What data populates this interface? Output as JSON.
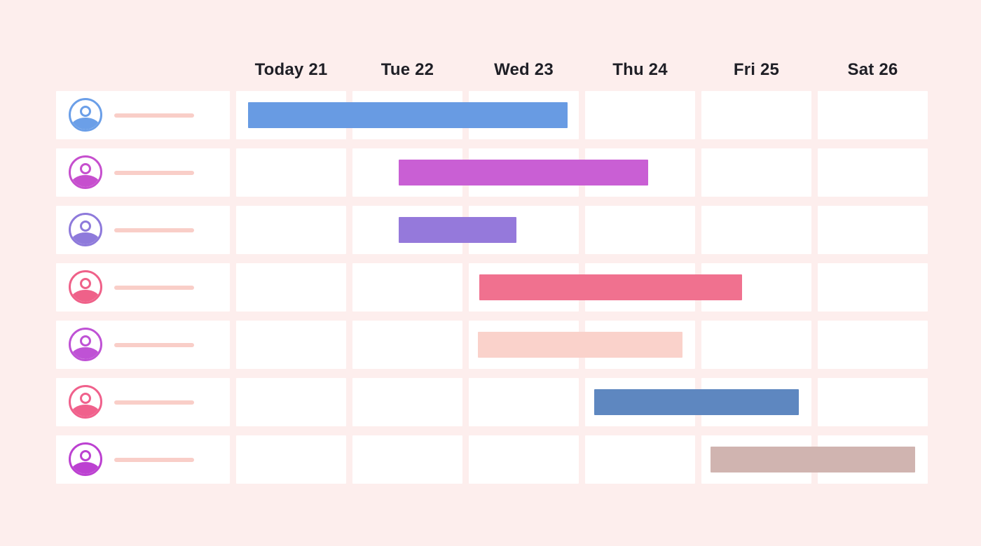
{
  "page": {
    "background": "#FDEEED",
    "cell_color": "#FFFFFF",
    "header_text_color": "#1F1F26",
    "placeholder_color": "#F9CEC8"
  },
  "header": {
    "days": [
      "Today 21",
      "Tue 22",
      "Wed 23",
      "Thu 24",
      "Fri 25",
      "Sat 26"
    ]
  },
  "chart_data": {
    "type": "gantt",
    "columns": [
      "Today 21",
      "Tue 22",
      "Wed 23",
      "Thu 24",
      "Fri 25",
      "Sat 26"
    ],
    "day_unit_note": "start_day/end_day are fractional offsets where 0 = left edge of the Today 21 column and 1 = one full day column",
    "rows": [
      {
        "avatar_color": "#6B9FE8",
        "bar": {
          "start_day": 0.1,
          "end_day": 2.85,
          "color": "#689BE3"
        }
      },
      {
        "avatar_color": "#C64FCE",
        "bar": {
          "start_day": 1.4,
          "end_day": 3.54,
          "color": "#C95FD4"
        }
      },
      {
        "avatar_color": "#8E7ADB",
        "bar": {
          "start_day": 1.4,
          "end_day": 2.41,
          "color": "#9579DB"
        }
      },
      {
        "avatar_color": "#EF6189",
        "bar": {
          "start_day": 2.09,
          "end_day": 4.35,
          "color": "#F0718F"
        }
      },
      {
        "avatar_color": "#BF52D5",
        "bar": {
          "start_day": 2.08,
          "end_day": 3.84,
          "color": "#FAD2CB"
        }
      },
      {
        "avatar_color": "#F0618C",
        "bar": {
          "start_day": 3.08,
          "end_day": 4.84,
          "color": "#5E87C0"
        }
      },
      {
        "avatar_color": "#BC41D1",
        "bar": {
          "start_day": 4.08,
          "end_day": 5.84,
          "color": "#D0B4B0"
        }
      }
    ]
  }
}
